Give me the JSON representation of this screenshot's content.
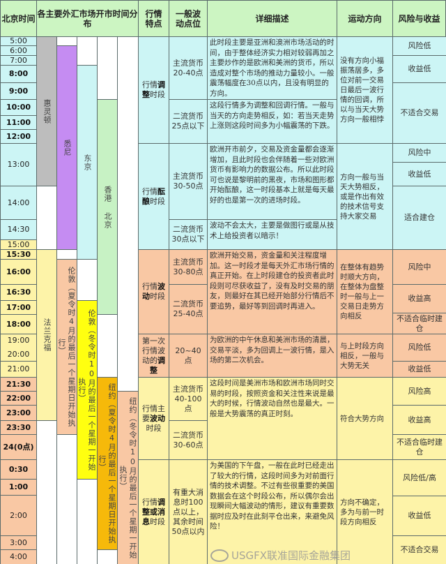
{
  "headers": {
    "time": "北京时间",
    "markets": "各主要外汇市场开市时间分布",
    "feature": "行情特点",
    "points": "一般波动点位",
    "desc": "详细描述",
    "direction": "运动方向",
    "risk": "风险与收益"
  },
  "colors": {
    "header": "#ccf5c2",
    "cyan": "#ccf5f5",
    "yellow": "#fdf3a8",
    "peach": "#f9c8a4",
    "gray": "#bdbdbd",
    "purple": "#c58cf2",
    "green": "#c7f2c4",
    "bright_yellow": "#ffff10",
    "orange": "#f6b90a"
  },
  "times": [
    [
      "5:00"
    ],
    [
      "6:00"
    ],
    [
      "7:00"
    ],
    [
      "8:00"
    ],
    [
      "9:00"
    ],
    [
      "10:00"
    ],
    [
      "11:00"
    ],
    [
      "12:00"
    ],
    [
      "13:00"
    ],
    [
      "14:00"
    ],
    [
      "14:30"
    ],
    [
      "15:00"
    ],
    [
      "15:30"
    ],
    [
      "16:00"
    ],
    [
      "16:30"
    ],
    [
      "17:00"
    ],
    [
      "18:00"
    ],
    [
      "19:00",
      "20:00"
    ],
    [
      "21:00"
    ],
    [
      "21:30"
    ],
    [
      "22:00"
    ],
    [
      "23:00"
    ],
    [
      "23:30"
    ],
    [
      "24(0点)"
    ],
    [
      "0:30"
    ],
    [
      "1:00"
    ],
    [
      "2:00"
    ],
    [
      "3:00"
    ],
    [
      "4:00"
    ]
  ],
  "markets": [
    {
      "name": "惠灵顿"
    },
    {
      "name": "悉尼"
    },
    {
      "name": "东京"
    },
    {
      "name": "香港 北京"
    },
    {
      "name": "法兰克福"
    },
    {
      "name": "伦敦（夏令时4月的最后一个星期日开始执行）"
    },
    {
      "name": "伦敦（冬令时10月的最后一个星期一开始执行）"
    },
    {
      "name": "纽约（夏令时4月的最后一个星期日开始执行）"
    },
    {
      "name": "纽约（冬令时10月的最后一个星期一开始执行）"
    }
  ],
  "sections": [
    {
      "feature": [
        "行情",
        "调整",
        "时段"
      ],
      "points": [
        "主流货币\n20-40点",
        "二流货币\n25点以下"
      ],
      "desc": [
        "此时段主要是亚洲和澳洲市场活动的时间，由于整体经济实力相对较弱再加之主要炒作的是欧洲和美洲的货币，所以造成对整个市场的推动力量较小。一般震荡幅度在30点以内，且没有明显的方向。",
        "这段行情多为调整和回调行情。一般与当天的方向走势相反，如：若当天走势上涨则这段时间多为小幅震荡的下跌。"
      ],
      "direction": "没有方向小福振荡居多，多位对前一交易日最后一波行情的回调，所以与当天大势方向一般相悖",
      "risk": [
        "风险低",
        "收益低",
        "不适合交易"
      ]
    },
    {
      "feature": [
        "行情",
        "酝酿",
        "时段"
      ],
      "points": [
        "主流货币\n30-50点",
        "二流货币\n30点以下"
      ],
      "desc": [
        "欧洲开市前夕，交易及资金量都会逐渐增加，且此时段也会伴随着一些对欧洲货币有影响力的数据公布。所以此时段可也说是黎明前的黑夜，市场和图形都开始酝酿，这一时段基本上就是每天最好的也是第一次的进场时段。",
        "波动不会太大，主要是做图行或是从技术上给投资者以暗示！"
      ],
      "direction": "方向一般与当天大势相反，或是作出有效的技术信号支持大家交易",
      "risk": [
        "风险中",
        "收益低",
        "适合建仓"
      ]
    },
    {
      "feature": [
        "行情",
        "波动",
        "时段"
      ],
      "points": [
        "主流货币\n30-80点",
        "二流货币\n25-40点"
      ],
      "desc": [
        "欧洲开始交易，资金量和关注程度增加。这一时段才是每天外汇市场行情的真正开始。在上时段建仓的投资者此时段则可尽获收益了，没有及时交易的朋友，则最好在其已经开始部分行情后不要追势，最好等到回调时再进入。"
      ],
      "direction": "在整体有趋势时顺大方向，在整体为盘整时一般与上一交易日走势方向相反",
      "risk": [
        "风险中",
        "收益高",
        "不适合临时建仓"
      ]
    },
    {
      "feature": [
        "第一次行情波动的",
        "调整",
        ""
      ],
      "points": [
        "20~40点"
      ],
      "desc": [
        "为欧洲的中午休息和美洲市场的清晨，交易平淡，多为回调上一波行情，是入场的第二次机会。"
      ],
      "direction": "与上时段方向相反，一般与大势无关",
      "risk": [
        "风险低",
        "收益低"
      ]
    },
    {
      "feature": [
        "行情主要",
        "波动",
        "时段"
      ],
      "points": [
        "主流货币\n40-100点",
        "二流货币\n30-60点"
      ],
      "desc": [
        "这段时间是美洲市场和欧洲市场同时交易的时段，按照资金和关注性来说是最大的时候，行情波动自然也是最大。一般是大势震荡的真正时刻。"
      ],
      "direction": "符合大势方向",
      "risk": [
        "风险高",
        "收益高",
        "不适合临时建仓"
      ]
    },
    {
      "feature": [
        "行情",
        "调整或消息",
        "时段"
      ],
      "points": [
        "有重大消息时100点以上，\n其余时间50点以内"
      ],
      "desc": [
        "为美国的下午盘，一般在此时已经走出了较大的行情，这段时间多为对前面行情的技术调整。不过有些很重要的美国数据会在这个时段公布，所以偶尔会出现瞬间大幅波动的情形，建议有重要数据时应及时在此刻平仓出来，来避免风险！"
      ],
      "direction": "方向不确定，多为与前一时段方向相反",
      "risk": [
        "风险低/高",
        "收益低",
        "不适合交易"
      ]
    }
  ],
  "watermark": "USGFX联准国际金融集团"
}
